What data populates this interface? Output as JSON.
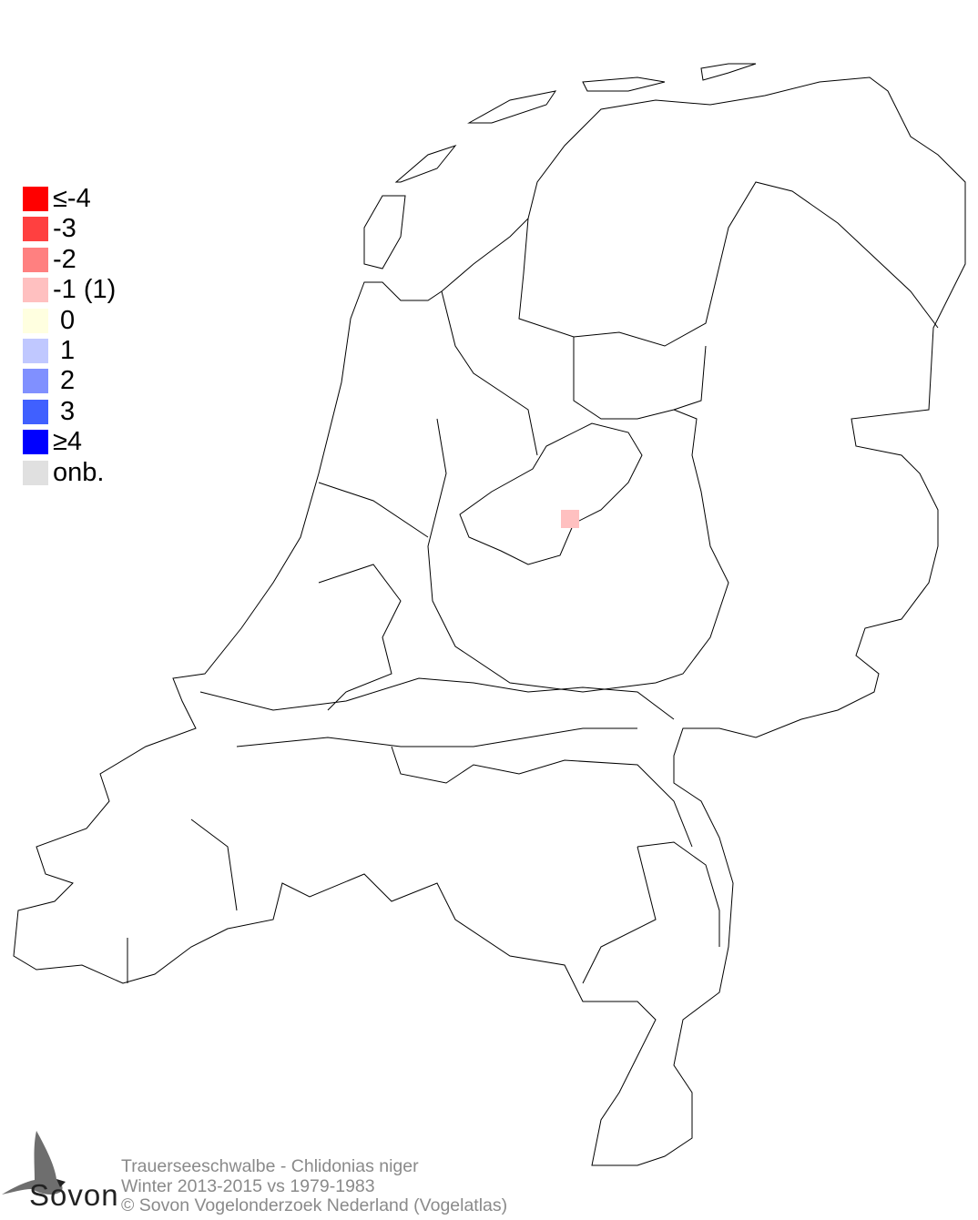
{
  "legend": {
    "items": [
      {
        "label": "≤-4",
        "color": "#ff0000"
      },
      {
        "label": "-3",
        "color": "#ff4040"
      },
      {
        "label": "-2",
        "color": "#ff8080"
      },
      {
        "label": "-1 (1)",
        "color": "#ffc0c0"
      },
      {
        "label": " 0",
        "color": "#ffffe0"
      },
      {
        "label": " 1",
        "color": "#c0c8ff"
      },
      {
        "label": " 2",
        "color": "#8090ff"
      },
      {
        "label": " 3",
        "color": "#4060ff"
      },
      {
        "label": "≥4",
        "color": "#0000ff"
      },
      {
        "label": "onb.",
        "color": "#e0e0e0"
      }
    ]
  },
  "map": {
    "cells": [
      {
        "class": "-1",
        "color": "#ffc0c0"
      }
    ]
  },
  "footer": {
    "species": "Trauerseeschwalbe - Chlidonias niger",
    "period": "Winter 2013-2015 vs 1979-1983",
    "copyright": "© Sovon Vogelonderzoek Nederland (Vogelatlas)"
  },
  "logo": {
    "text": "Sovon",
    "icon": "swallow-icon"
  }
}
